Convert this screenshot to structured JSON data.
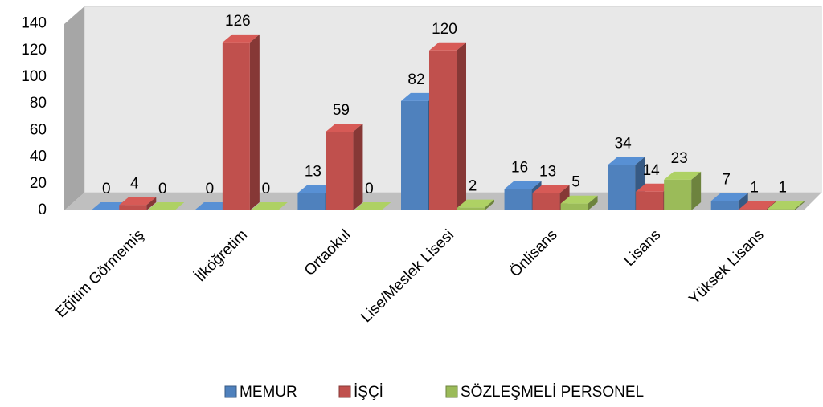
{
  "chart_data": {
    "type": "bar3d",
    "categories": [
      "Eğitim Görmemiş",
      "İlköğretim",
      "Ortaokul",
      "Lise/Meslek Lisesi",
      "Önlisans",
      "Lisans",
      "Yüksek Lisans"
    ],
    "series": [
      {
        "name": "MEMUR",
        "color": "#4f81bd",
        "values": [
          0,
          0,
          13,
          82,
          16,
          34,
          7
        ]
      },
      {
        "name": "İŞÇİ",
        "color": "#c0504d",
        "values": [
          4,
          126,
          59,
          120,
          13,
          14,
          1
        ]
      },
      {
        "name": "SÖZLEŞMELİ PERSONEL",
        "color": "#9bbb59",
        "values": [
          0,
          0,
          0,
          2,
          5,
          23,
          1
        ]
      }
    ],
    "ylim": [
      0,
      140
    ],
    "yticks": [
      0,
      20,
      40,
      60,
      80,
      100,
      120,
      140
    ],
    "grid": false,
    "legend": "bottom"
  }
}
